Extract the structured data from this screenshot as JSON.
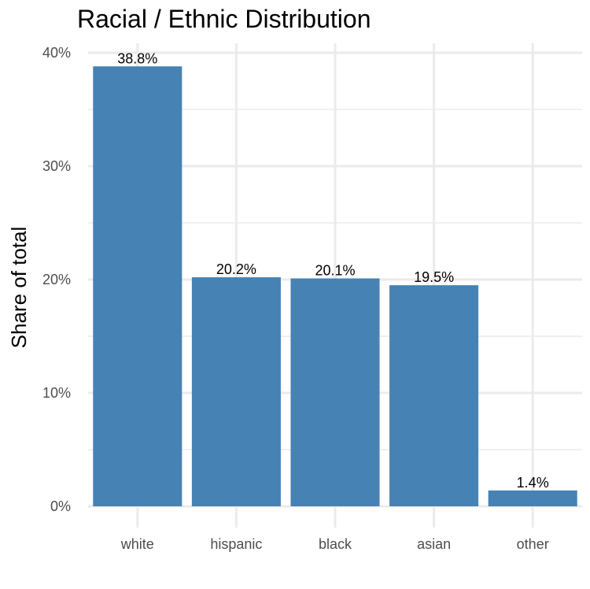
{
  "chart_data": {
    "type": "bar",
    "title": "Racial / Ethnic Distribution",
    "xlabel": "",
    "ylabel": "Share of total",
    "categories": [
      "white",
      "hispanic",
      "black",
      "asian",
      "other"
    ],
    "values": [
      38.8,
      20.2,
      20.1,
      19.5,
      1.4
    ],
    "data_labels": [
      "38.8%",
      "20.2%",
      "20.1%",
      "19.5%",
      "1.4%"
    ],
    "ylim": [
      0,
      40
    ],
    "yticks": [
      0,
      10,
      20,
      30,
      40
    ],
    "ytick_labels": [
      "0%",
      "10%",
      "20%",
      "30%",
      "40%"
    ],
    "grid": true,
    "legend": "none",
    "colors": {
      "bar": "#4682b4",
      "grid": "#ebebeb",
      "tick_text": "#4d4d4d",
      "text": "#000000"
    }
  }
}
